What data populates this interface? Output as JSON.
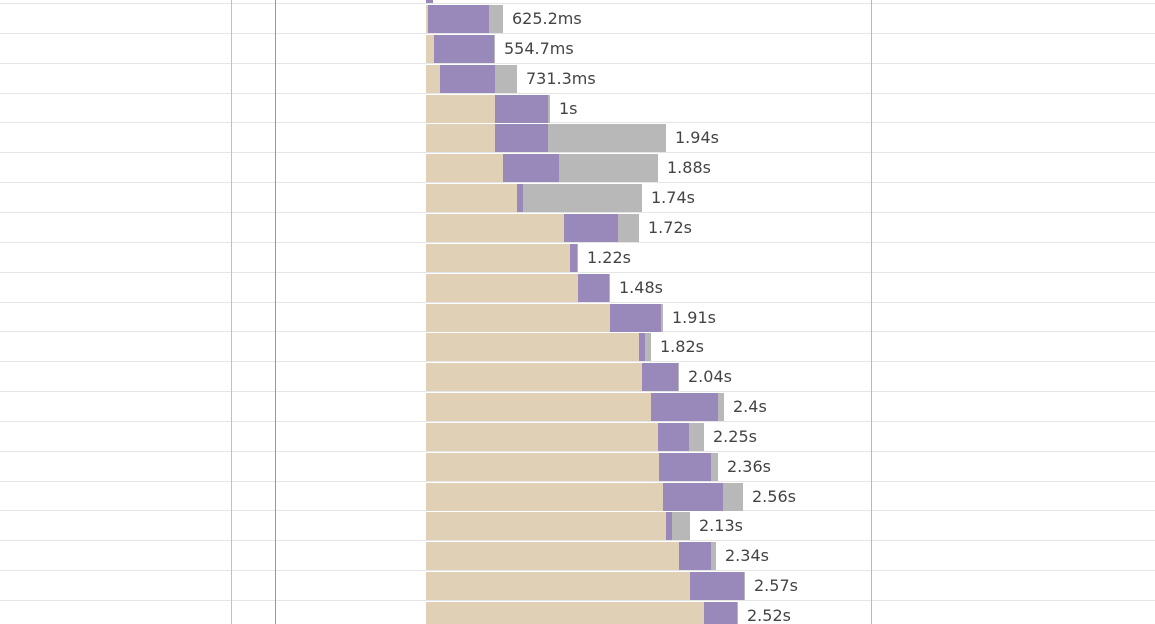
{
  "colors": {
    "wait": "#dfd0b6",
    "ttfb": "#9989bb",
    "download": "#b8b8b8",
    "dom_content_loaded_line": "#a9c6db",
    "first_paint_line": "#5fbe76",
    "load_line": "#e2a7ad",
    "row_border": "#e6e6e6",
    "label_text": "#444444"
  },
  "requests": [
    {
      "duration": "625.2ms"
    },
    {
      "duration": "554.7ms"
    },
    {
      "duration": "731.3ms"
    },
    {
      "duration": "1s"
    },
    {
      "duration": "1.94s"
    },
    {
      "duration": "1.88s"
    },
    {
      "duration": "1.74s"
    },
    {
      "duration": "1.72s"
    },
    {
      "duration": "1.22s"
    },
    {
      "duration": "1.48s"
    },
    {
      "duration": "1.91s"
    },
    {
      "duration": "1.82s"
    },
    {
      "duration": "2.04s"
    },
    {
      "duration": "2.4s"
    },
    {
      "duration": "2.25s"
    },
    {
      "duration": "2.36s"
    },
    {
      "duration": "2.56s"
    },
    {
      "duration": "2.13s"
    },
    {
      "duration": "2.34s"
    },
    {
      "duration": "2.57s"
    },
    {
      "duration": "2.52s"
    }
  ]
}
